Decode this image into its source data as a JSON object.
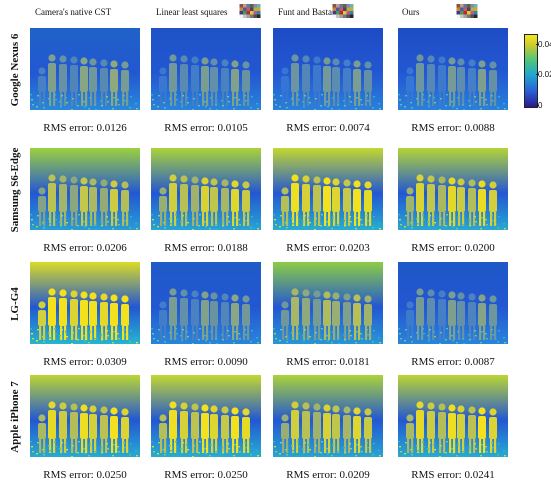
{
  "columns": [
    {
      "label": "Camera's native CST",
      "swatch": false
    },
    {
      "label": "Linear least squares",
      "swatch": true
    },
    {
      "label": "Funt and Bastani [9]",
      "swatch": true
    },
    {
      "label": "Ours",
      "swatch": true
    }
  ],
  "rows": [
    {
      "camera": "Google Nexus 6",
      "rms": [
        "RMS error: 0.0126",
        "RMS error: 0.0105",
        "RMS error: 0.0074",
        "RMS error: 0.0088"
      ]
    },
    {
      "camera": "Samsung S6-Edge",
      "rms": [
        "RMS error: 0.0206",
        "RMS error: 0.0188",
        "RMS error: 0.0203",
        "RMS error: 0.0200"
      ]
    },
    {
      "camera": "LG-G4",
      "rms": [
        "RMS error: 0.0309",
        "RMS error: 0.0090",
        "RMS error: 0.0181",
        "RMS error: 0.0087"
      ]
    },
    {
      "camera": "Apple iPhone 7",
      "rms": [
        "RMS error: 0.0250",
        "RMS error: 0.0250",
        "RMS error: 0.0209",
        "RMS error: 0.0241"
      ]
    }
  ],
  "colorbar": {
    "ticks": [
      "0.04",
      "0.02",
      "0"
    ]
  },
  "colors": {
    "deep_blue": "#1c3fc4",
    "mid_blue": "#2a6fe0",
    "cyan": "#27b5cf",
    "green": "#55c25a",
    "yellow": "#f2e11c"
  }
}
